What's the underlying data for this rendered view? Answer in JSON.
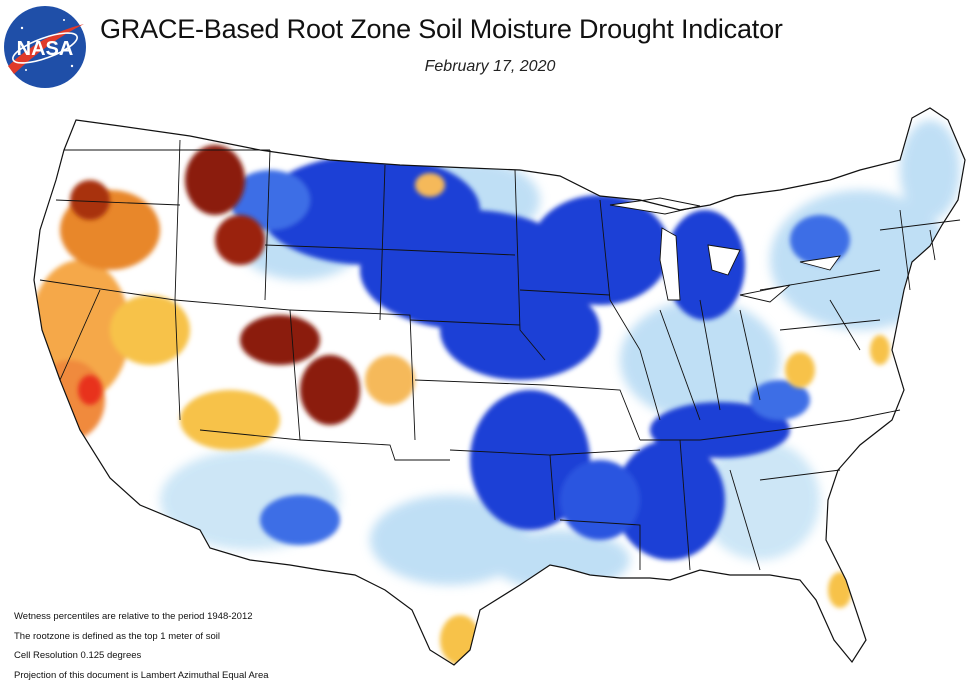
{
  "header": {
    "logo_text": "NASA",
    "title": "GRACE-Based Root Zone Soil  Moisture Drought Indicator",
    "date": "February 17, 2020"
  },
  "map": {
    "region": "Contiguous United States",
    "color_scale": {
      "extreme_dry": "#e8321e",
      "severe_dry": "#8b1a08",
      "moderate_dry": "#f08a3c",
      "mild_dry": "#f7c24a",
      "abnormal_dry": "#fde88a",
      "near_normal": "#ffffff",
      "mild_wet": "#b9dcf4",
      "moderate_wet": "#5aa8ec",
      "very_wet": "#1a3fd6",
      "extreme_wet": "#0a22c8"
    }
  },
  "notes": [
    "Wetness percentiles are relative to the period 1948-2012",
    "The rootzone is defined as the top 1 meter of soil",
    "Cell Resolution 0.125 degrees",
    "Projection of this document is Lambert Azimuthal Equal Area"
  ]
}
